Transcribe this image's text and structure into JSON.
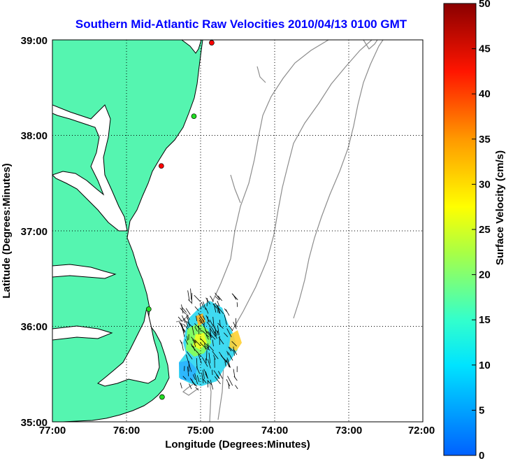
{
  "title": "Southern Mid-Atlantic Raw Velocities 2010/04/13 0100 GMT",
  "xlabel": "Longitude (Degrees:Minutes)",
  "ylabel": "Latitude (Degrees:Minutes)",
  "x_ticks": [
    "77:00",
    "76:00",
    "75:00",
    "74:00",
    "73:00",
    "72:00"
  ],
  "y_ticks": [
    "39:00",
    "38:00",
    "37:00",
    "36:00",
    "35:00"
  ],
  "colorbar": {
    "label": "Surface Velocity (cm/s)",
    "ticks": [
      "0",
      "5",
      "10",
      "15",
      "20",
      "25",
      "30",
      "35",
      "40",
      "45",
      "50"
    ],
    "min": 0,
    "max": 50
  },
  "colors": {
    "land": "#55f5b0",
    "coast": "#000000",
    "bathymetry": "#8c8c8c",
    "title": "#0000ff"
  },
  "stations": [
    {
      "lon": -74.85,
      "lat": 38.97,
      "color": "#ff0000"
    },
    {
      "lon": -75.09,
      "lat": 38.2,
      "color": "#22dd22"
    },
    {
      "lon": -75.53,
      "lat": 37.68,
      "color": "#ff0000"
    },
    {
      "lon": -75.7,
      "lat": 36.18,
      "color": "#22dd22"
    },
    {
      "lon": -75.52,
      "lat": 35.26,
      "color": "#22dd22"
    }
  ]
}
